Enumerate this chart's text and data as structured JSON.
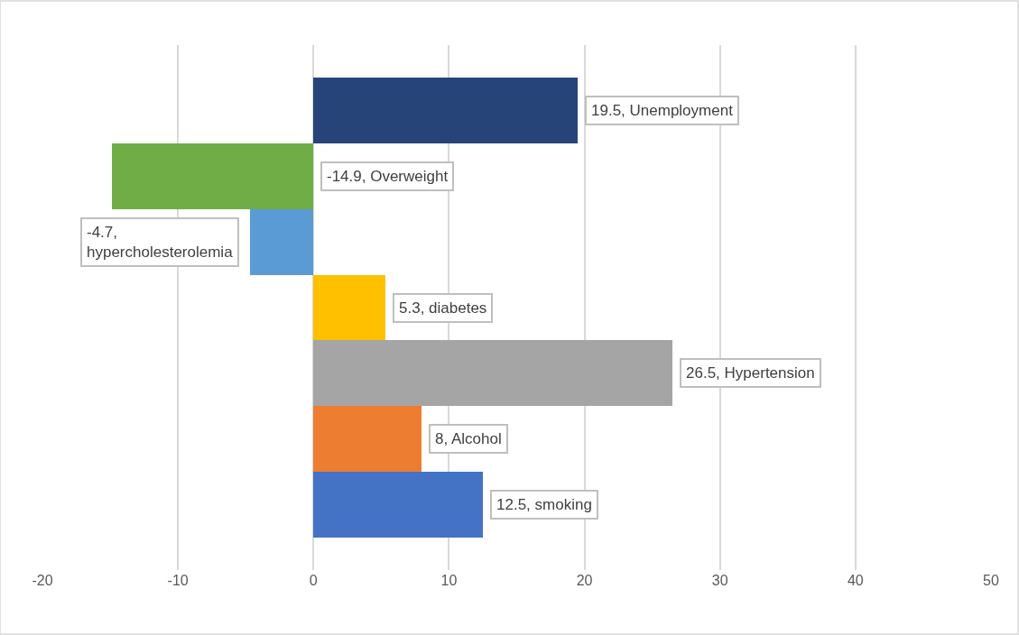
{
  "chart_data": {
    "type": "bar",
    "orientation": "horizontal",
    "categories": [
      null,
      null,
      null,
      null,
      null,
      null,
      null
    ],
    "values": [
      19.5,
      -14.9,
      -4.7,
      5.3,
      26.5,
      8,
      12.5
    ],
    "colors": [
      "#264478",
      "#70ad47",
      "#5b9bd5",
      "#ffc000",
      "#a5a5a5",
      "#ed7d31",
      "#4472c4"
    ],
    "value_labels": [
      "19.5, Unemployment",
      "-14.9, Overweight",
      "-4.7,\nhypercholesterolemia",
      "5.3, diabetes",
      "26.5, Hypertension",
      "8, Alcohol",
      "12.5, smoking"
    ],
    "xlim": [
      -20,
      50
    ],
    "xticks": [
      -20,
      -10,
      0,
      10,
      20,
      30,
      40,
      50
    ],
    "grid": "x",
    "legend": false,
    "tick_labels": "x"
  }
}
